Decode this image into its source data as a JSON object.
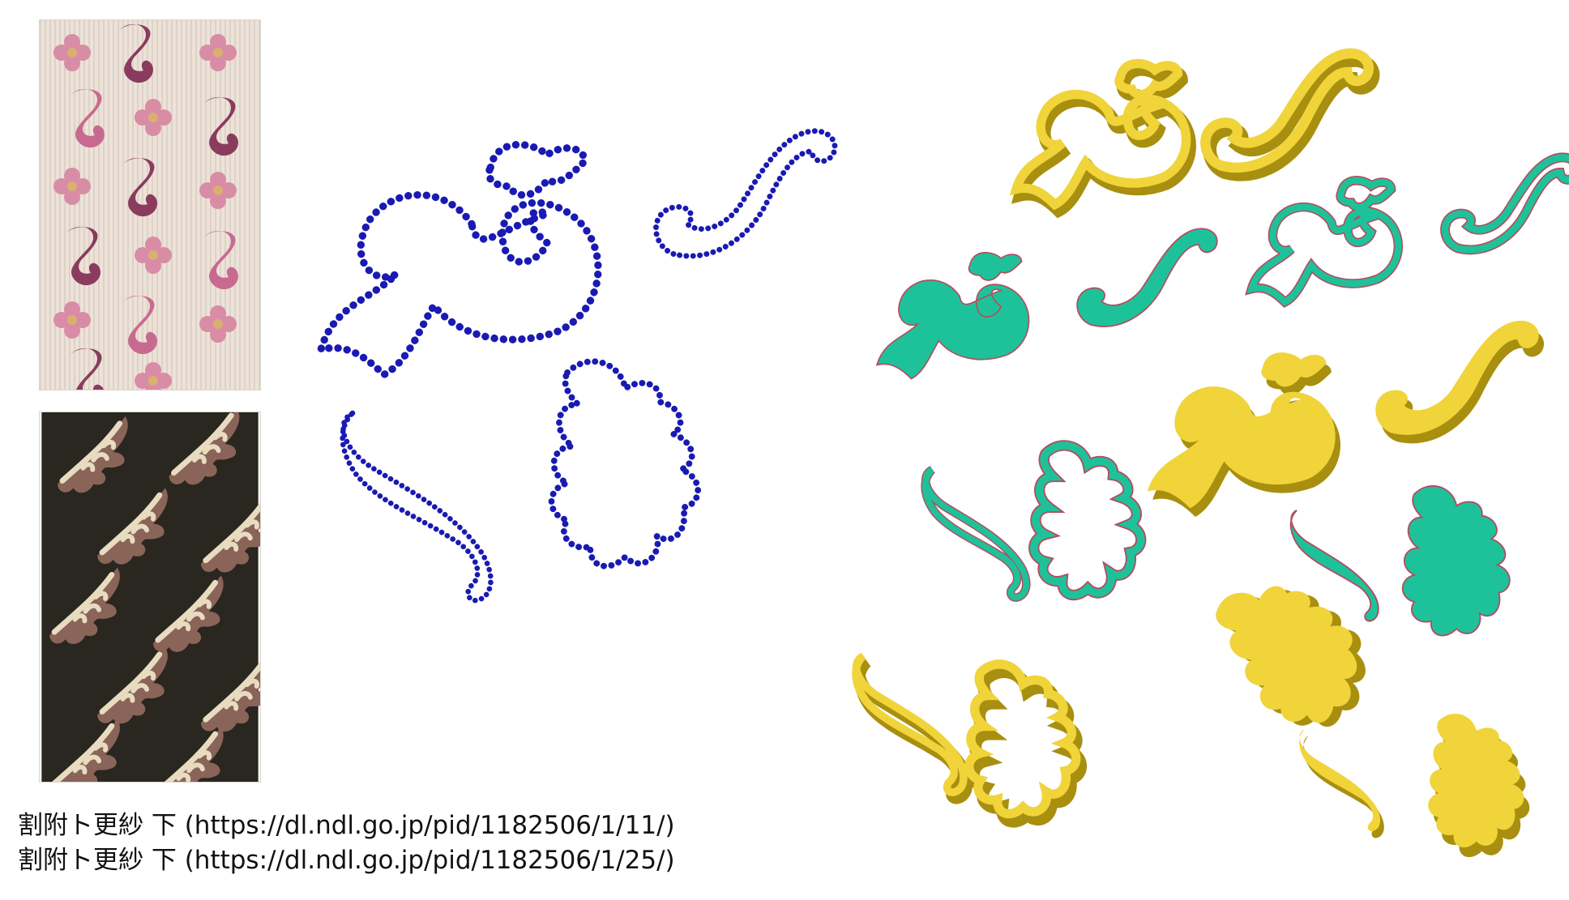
{
  "captions": [
    "割附ト更紗 下 (https://dl.ndl.go.jp/pid/1182506/1/11/)",
    "割附ト更紗 下 (https://dl.ndl.go.jp/pid/1182506/1/25/)"
  ],
  "colors": {
    "outline_points": "#1a1ab3",
    "teal": "#1ec29a",
    "teal_edge": "#b05060",
    "gold": "#f0d43a",
    "gold_dark": "#a98f10",
    "pink_bg": "#eadfd6",
    "pink_flower": "#d98ca6",
    "pink_scroll": "#8a3b5e",
    "dark_bg": "#2a2620",
    "dark_leaf_outer": "#8a6458",
    "dark_leaf_inner": "#e8dcc0"
  },
  "icons": {
    "pink_swatch": "pink-floral-textile-swatch",
    "dark_swatch": "dark-leaf-textile-swatch"
  }
}
